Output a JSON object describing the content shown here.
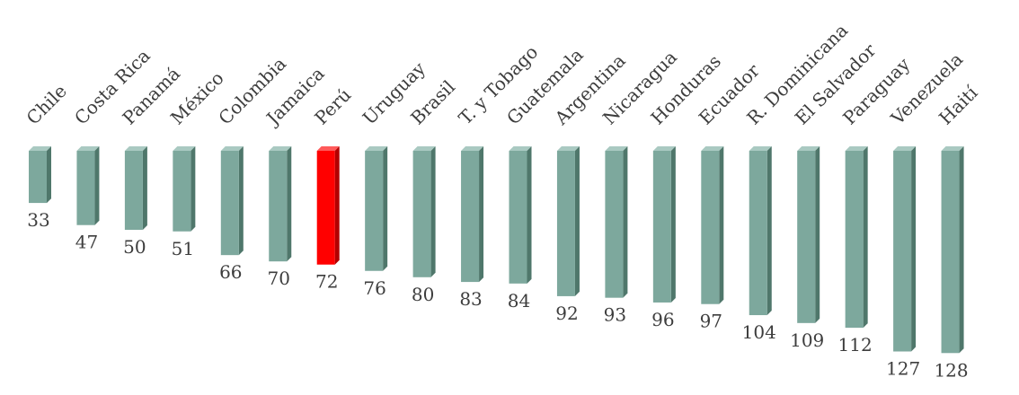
{
  "chart_data": {
    "type": "bar",
    "title": "",
    "xlabel": "",
    "ylabel": "",
    "categories": [
      "Chile",
      "Costa Rica",
      "Panamá",
      "México",
      "Colombia",
      "Jamaica",
      "Perú",
      "Uruguay",
      "Brasil",
      "T. y Tobago",
      "Guatemala",
      "Argentina",
      "Nicaragua",
      "Honduras",
      "Ecuador",
      "R. Dominicana",
      "El Salvador",
      "Paraguay",
      "Venezuela",
      "Haití"
    ],
    "values": [
      33,
      47,
      50,
      51,
      66,
      70,
      72,
      76,
      80,
      83,
      84,
      92,
      93,
      96,
      97,
      104,
      109,
      112,
      127,
      128
    ],
    "value_labels": [
      "33",
      "47",
      "50",
      "51",
      "66",
      "70",
      "72",
      "76",
      "80",
      "83",
      "84",
      "92",
      "93",
      "96",
      "97",
      "104",
      "109",
      "112",
      "127",
      "128"
    ],
    "highlight": "Perú",
    "bars_hang_downward": true,
    "value_axis_min": 0,
    "category_label_rotation_deg": -45,
    "grid": false,
    "legend": "none",
    "colors": {
      "bar_front": "#7da89d",
      "bar_side": "#4f776b",
      "bar_top": "#a9c9c1",
      "highlight_front": "#ff0000",
      "highlight_side": "#b30000",
      "highlight_top": "#ff5a5a",
      "text": "#3d3d3d"
    }
  }
}
